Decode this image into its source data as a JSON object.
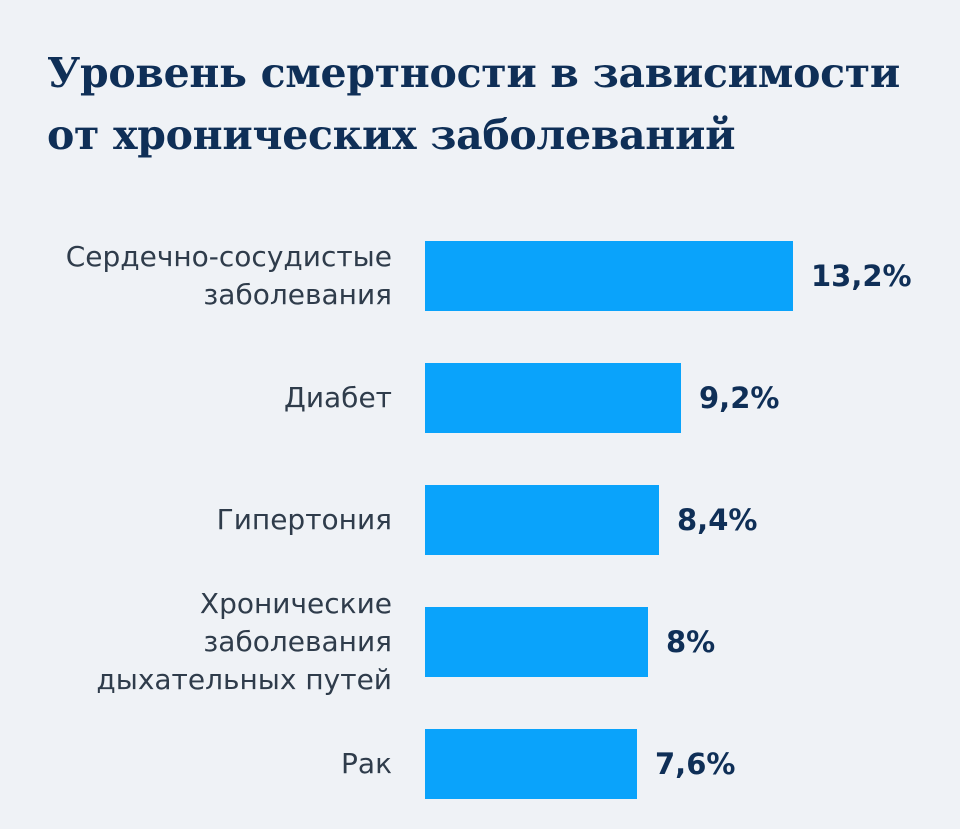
{
  "title": {
    "line1": "Уровень смертности в зависимости",
    "line2": "от хронических заболеваний"
  },
  "colors": {
    "background": "#eff2f6",
    "bar": "#0aa3fb",
    "title": "#0f2f57",
    "category_label": "#2f3c4b",
    "value_label": "#0f2f57"
  },
  "chart_data": {
    "type": "bar",
    "orientation": "horizontal",
    "title": "Уровень смертности в зависимости от хронических заболеваний",
    "xlabel": "",
    "ylabel": "",
    "grid": false,
    "unit": "%",
    "categories": [
      [
        "Сердечно-сосудистые",
        "заболевания"
      ],
      [
        "Диабет"
      ],
      [
        "Гипертония"
      ],
      [
        "Хронические",
        "заболевания",
        "дыхательных путей"
      ],
      [
        "Рак"
      ]
    ],
    "values": [
      13.2,
      9.2,
      8.4,
      8,
      7.6
    ],
    "value_labels": [
      "13,2%",
      "9,2%",
      "8,4%",
      "8%",
      "7,6%"
    ]
  }
}
